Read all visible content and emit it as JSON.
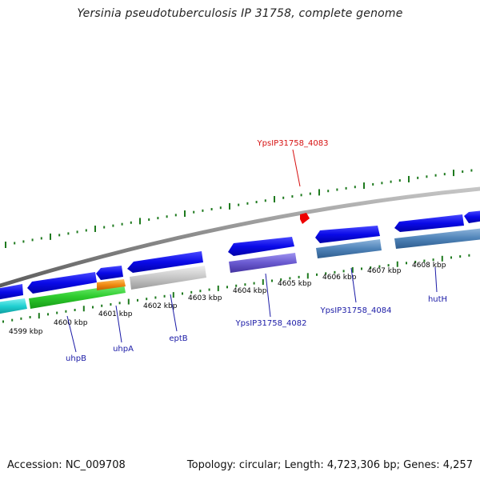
{
  "title": "Yersinia pseudotuberculosis IP 31758, complete genome",
  "footer": {
    "accession": "Accession: NC_009708",
    "stats": "Topology: circular; Length: 4,723,306 bp; Genes: 4,257"
  },
  "ticks": [
    "4599 kbp",
    "4600 kbp",
    "4601 kbp",
    "4602 kbp",
    "4603 kbp",
    "4604 kbp",
    "4605 kbp",
    "4606 kbp",
    "4607 kbp",
    "4608 kbp"
  ],
  "gene_labels": [
    "YpsIP31758_4083",
    "uhpB",
    "uhpA",
    "eptB",
    "YpsIP31758_4082",
    "YpsIP31758_4084",
    "hutH"
  ],
  "colors": {
    "backbone": "#8a8a8a",
    "tick": "#1e7a1e",
    "forward_gene": "#1010e0",
    "label_blue": "#1a1aa6",
    "label_red": "#d61010",
    "marker": "#ee0000"
  }
}
